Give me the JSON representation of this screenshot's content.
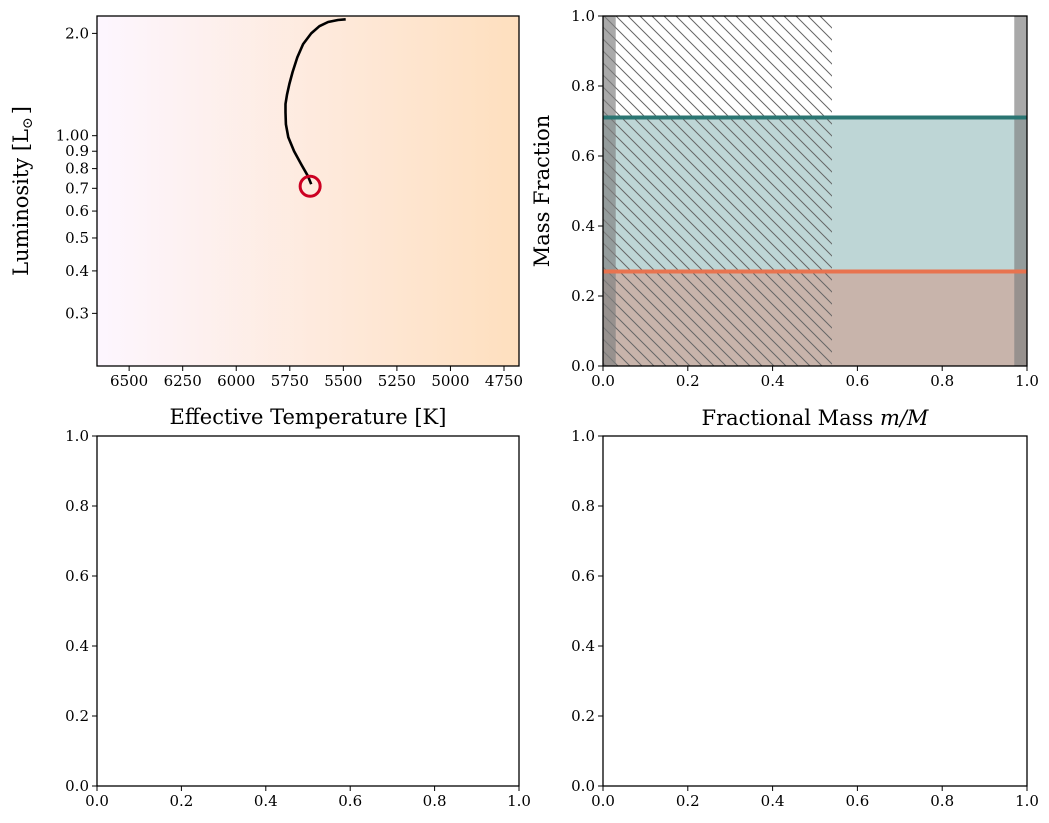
{
  "chart_data": [
    {
      "type": "line",
      "panel": "hr-diagram",
      "xlabel": "Effective Temperature [K]",
      "ylabel_main": "Luminosity [L",
      "ylabel_sub": "⊙",
      "ylabel_close": "]",
      "xlim": [
        6650,
        4680
      ],
      "xticks": [
        6500,
        6250,
        6000,
        5750,
        5500,
        5250,
        5000,
        4750
      ],
      "xtick_labels": [
        "6500",
        "6250",
        "6000",
        "5750",
        "5500",
        "5250",
        "5000",
        "4750"
      ],
      "yscale": "log",
      "ylim": [
        0.21,
        2.25
      ],
      "yticks": [
        0.3,
        0.4,
        0.5,
        0.6,
        0.7,
        0.8,
        0.9,
        1.0,
        2.0
      ],
      "ytick_labels": [
        "0.3",
        "0.4",
        "0.5",
        "0.6",
        "0.7",
        "0.8",
        "0.9",
        "1.00",
        "2.0"
      ],
      "background_gradient": [
        "#fdf6ff",
        "#fedfbe"
      ],
      "series": [
        {
          "color": "#000000",
          "x": [
            5650,
            5665,
            5695,
            5730,
            5757,
            5768,
            5770,
            5770,
            5763,
            5752,
            5737,
            5715,
            5688,
            5650,
            5612,
            5571,
            5525,
            5489
          ],
          "y": [
            0.72,
            0.76,
            0.82,
            0.9,
            0.99,
            1.08,
            1.17,
            1.24,
            1.32,
            1.42,
            1.54,
            1.7,
            1.86,
            2.0,
            2.1,
            2.16,
            2.19,
            2.2
          ]
        }
      ],
      "marker": {
        "x": 5655,
        "y": 0.71,
        "color": "#cc0022",
        "shape": "open-circle"
      }
    },
    {
      "type": "area",
      "panel": "composition",
      "xlabel_text": "Fractional Mass ",
      "xlabel_math": "m/M",
      "ylabel": "Mass Fraction",
      "xlim": [
        0,
        1
      ],
      "ylim": [
        0,
        1
      ],
      "xticks": [
        0.0,
        0.2,
        0.4,
        0.6,
        0.8,
        1.0
      ],
      "xtick_labels": [
        "0.0",
        "0.2",
        "0.4",
        "0.6",
        "0.8",
        "1.0"
      ],
      "yticks": [
        0.0,
        0.2,
        0.4,
        0.6,
        0.8,
        1.0
      ],
      "ytick_labels": [
        "0.0",
        "0.2",
        "0.4",
        "0.6",
        "0.8",
        "1.0"
      ],
      "series": [
        {
          "key": "lower",
          "color": "#e8734f",
          "fill": "#c8b4ab",
          "value": 0.27
        },
        {
          "key": "upper",
          "color": "#2a7572",
          "fill": "#bed6d6",
          "value": 0.71
        }
      ],
      "hatched_region": [
        0.0,
        0.54
      ],
      "shaded_bands": [
        [
          0.0,
          0.03
        ],
        [
          0.97,
          1.0
        ]
      ],
      "band_color": "#808080"
    },
    {
      "type": "line",
      "panel": "empty-bottom-left",
      "xlim": [
        0,
        1
      ],
      "ylim": [
        0,
        1
      ],
      "xtick_labels": [
        "0.0",
        "0.2",
        "0.4",
        "0.6",
        "0.8",
        "1.0"
      ],
      "ytick_labels": [
        "0.0",
        "0.2",
        "0.4",
        "0.6",
        "0.8",
        "1.0"
      ],
      "series": []
    },
    {
      "type": "line",
      "panel": "empty-bottom-right",
      "xlim": [
        0,
        1
      ],
      "ylim": [
        0,
        1
      ],
      "xtick_labels": [
        "0.0",
        "0.2",
        "0.4",
        "0.6",
        "0.8",
        "1.0"
      ],
      "ytick_labels": [
        "0.0",
        "0.2",
        "0.4",
        "0.6",
        "0.8",
        "1.0"
      ],
      "series": []
    }
  ]
}
